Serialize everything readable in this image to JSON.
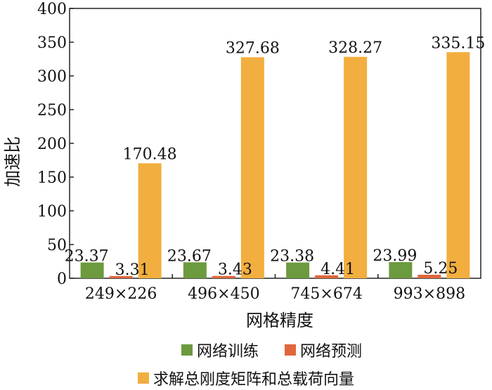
{
  "chart_data": {
    "type": "bar",
    "categories": [
      "249×226",
      "496×450",
      "745×674",
      "993×898"
    ],
    "series": [
      {
        "name": "网络训练",
        "color": "#6c9a3e",
        "values": [
          23.37,
          23.67,
          23.38,
          23.99
        ],
        "labels": [
          "23.37",
          "23.67",
          "23.38",
          "23.99"
        ]
      },
      {
        "name": "网络预测",
        "color": "#e0663b",
        "values": [
          3.31,
          3.43,
          4.41,
          5.25
        ],
        "labels": [
          "3.31",
          "3.43",
          "4.41",
          "5.25"
        ]
      },
      {
        "name": "求解总刚度矩阵和总载荷向量",
        "color": "#f2ae3f",
        "values": [
          170.48,
          327.68,
          328.27,
          335.15
        ],
        "labels": [
          "170.48",
          "327.68",
          "328.27",
          "335.15"
        ]
      }
    ],
    "xlabel": "网格精度",
    "ylabel": "加速比",
    "ylim": [
      0,
      400
    ],
    "yticks": [
      "0",
      "50",
      "100",
      "150",
      "200",
      "250",
      "300",
      "350",
      "400"
    ],
    "grid": false,
    "legend_position": "bottom"
  }
}
